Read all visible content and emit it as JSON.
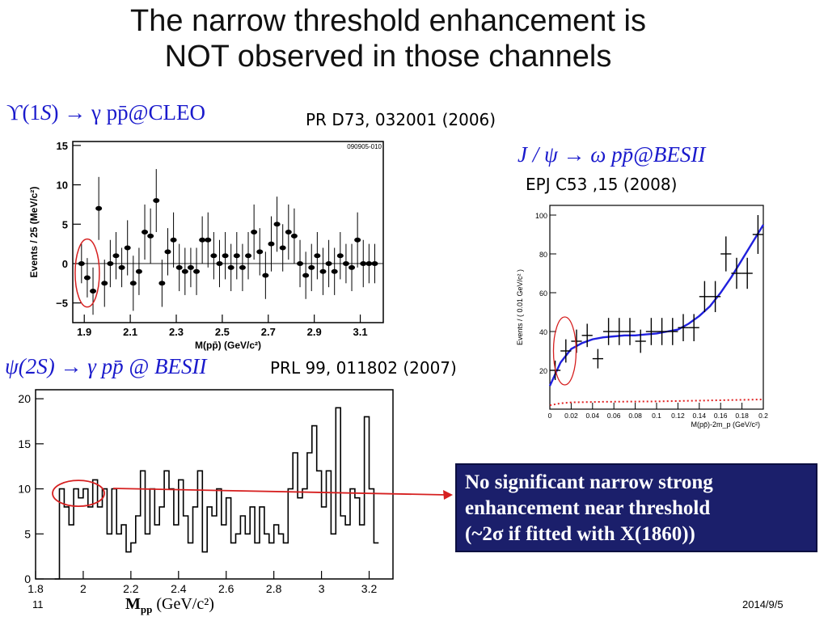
{
  "title_line1": "The narrow threshold enhancement is",
  "title_line2": "NOT observed in those channels",
  "cleo": {
    "reaction_prefix": "ϒ(1",
    "reaction_S": "S",
    "reaction_suffix": ") → γ pp̄@CLEO",
    "reference": "PR D73, 032001 (2006)",
    "stamp": "090905-010"
  },
  "besii_omega": {
    "reaction": "J / ψ → ω pp̄@BESII",
    "reference": "EPJ C53 ,15 (2008)"
  },
  "besii_psi2s": {
    "reaction": "ψ(2S) → γ pp̄ @ BESII",
    "reference": "PRL 99, 011802 (2007)"
  },
  "conclusion": {
    "line1": "No significant narrow strong",
    "line2": "enhancement  near threshold",
    "line3": "(~2σ if fitted with X(1860))"
  },
  "footer": {
    "page": "11",
    "date": "2014/9/5"
  },
  "bottom_xlabel": {
    "main": "M",
    "sub": "pp",
    "units": " (GeV/c²)"
  },
  "colors": {
    "title_text": "#111111",
    "reaction_text": "#1a1acc",
    "conclusion_bg": "#1b1f6b",
    "circle": "#d62020",
    "fit_line": "#2020dd",
    "arrow": "#d62020"
  },
  "chart_data": [
    {
      "id": "cleo",
      "type": "scatter",
      "title": "",
      "xlabel": "M(pp̄) (GeV/c²)",
      "ylabel": "Events / 25 (MeV/c²)",
      "xlim": [
        1.85,
        3.2
      ],
      "ylim": [
        -7.5,
        15.5
      ],
      "xticks": [
        1.9,
        2.1,
        2.3,
        2.5,
        2.7,
        2.9,
        3.1
      ],
      "yticks": [
        -5,
        0,
        5,
        10,
        15
      ],
      "x": [
        1.888,
        1.913,
        1.938,
        1.963,
        1.988,
        2.013,
        2.038,
        2.063,
        2.088,
        2.113,
        2.138,
        2.163,
        2.188,
        2.213,
        2.238,
        2.263,
        2.288,
        2.313,
        2.338,
        2.363,
        2.388,
        2.413,
        2.438,
        2.463,
        2.488,
        2.513,
        2.538,
        2.563,
        2.588,
        2.613,
        2.638,
        2.663,
        2.688,
        2.713,
        2.738,
        2.763,
        2.788,
        2.813,
        2.838,
        2.863,
        2.888,
        2.913,
        2.938,
        2.963,
        2.988,
        3.013,
        3.038,
        3.063,
        3.088,
        3.113,
        3.138,
        3.163
      ],
      "values": [
        0,
        -1.8,
        -3.5,
        7,
        -2.5,
        0,
        1,
        -0.5,
        2,
        -2.5,
        -1,
        4,
        3.5,
        8,
        -2.5,
        1.5,
        3,
        -0.5,
        -1,
        -0.5,
        -1,
        3,
        3,
        1,
        0,
        1,
        -0.5,
        1,
        -0.5,
        1,
        4,
        1.5,
        -1.5,
        2.5,
        5,
        2,
        4,
        3.5,
        0,
        -1.5,
        -0.5,
        1,
        -1,
        0,
        -1,
        1,
        0,
        -0.5,
        3,
        0,
        0,
        0
      ],
      "errors": [
        2.5,
        2.5,
        3,
        4,
        3,
        3,
        3,
        2.5,
        3.5,
        3.5,
        3,
        3.5,
        3.5,
        4,
        3,
        3,
        3.5,
        3,
        3,
        2.5,
        3,
        3,
        3.5,
        3,
        3,
        3,
        3,
        3,
        3,
        3,
        3.5,
        3,
        3,
        3.5,
        3.5,
        3,
        3.5,
        3.5,
        3,
        3,
        3,
        3,
        3,
        3,
        3,
        3,
        2.5,
        3,
        3.5,
        3,
        2.5,
        2.5
      ],
      "grid": false
    },
    {
      "id": "besii_omega",
      "type": "scatter",
      "title": "",
      "xlabel": "M(pp̄)-2m_p (GeV/c²)",
      "ylabel": "Events / ( 0.01 GeV/c² )",
      "xlim": [
        0,
        0.2
      ],
      "ylim": [
        0,
        105
      ],
      "xticks": [
        0,
        0.02,
        0.04,
        0.06,
        0.08,
        0.1,
        0.12,
        0.14,
        0.16,
        0.18,
        0.2
      ],
      "yticks": [
        20,
        40,
        60,
        80,
        100
      ],
      "x": [
        0.005,
        0.015,
        0.025,
        0.035,
        0.045,
        0.055,
        0.065,
        0.075,
        0.085,
        0.095,
        0.105,
        0.115,
        0.125,
        0.135,
        0.145,
        0.155,
        0.165,
        0.175,
        0.185,
        0.195
      ],
      "values": [
        20,
        30,
        35,
        38,
        26,
        40,
        40,
        40,
        35,
        40,
        40,
        40,
        42,
        42,
        58,
        58,
        80,
        70,
        70,
        90
      ],
      "errors": [
        5,
        6,
        6,
        6,
        5,
        7,
        7,
        7,
        6,
        7,
        7,
        7,
        7,
        7,
        8,
        8,
        9,
        8,
        8,
        10
      ],
      "fit_curve": {
        "x": [
          0,
          0.01,
          0.02,
          0.03,
          0.04,
          0.05,
          0.06,
          0.07,
          0.08,
          0.09,
          0.1,
          0.11,
          0.12,
          0.13,
          0.14,
          0.15,
          0.16,
          0.17,
          0.18,
          0.19,
          0.2
        ],
        "y": [
          12,
          24,
          31,
          34,
          36,
          37,
          37.5,
          38,
          38,
          38.5,
          39,
          40,
          41,
          44,
          48,
          53,
          60,
          68,
          77,
          86,
          95
        ]
      },
      "background_curve": {
        "x": [
          0,
          0.01,
          0.02,
          0.05,
          0.1,
          0.15,
          0.2
        ],
        "y": [
          2,
          3,
          3.5,
          3.8,
          4,
          4.5,
          5
        ]
      },
      "grid": false
    },
    {
      "id": "besii_psi2s",
      "type": "line",
      "title": "",
      "xlabel": "Mpp (GeV/c²)",
      "ylabel": "",
      "xlim": [
        1.8,
        3.3
      ],
      "ylim": [
        0,
        21
      ],
      "xticks": [
        1.8,
        2,
        2.2,
        2.4,
        2.6,
        2.8,
        3,
        3.2
      ],
      "xtick_labels": [
        "1.8",
        "2",
        "2.2",
        "2.4",
        "2.6",
        "2.8",
        "3",
        "3.2"
      ],
      "yticks": [
        0,
        5,
        10,
        15,
        20
      ],
      "bin_width": 0.02,
      "bin_start": 1.88,
      "values": [
        0,
        10,
        8,
        6,
        10,
        9,
        10,
        8,
        11,
        8,
        10,
        5,
        10,
        5,
        6,
        3,
        4,
        7,
        12,
        5,
        10,
        6,
        8,
        12,
        10,
        6,
        11,
        7,
        4,
        8,
        12,
        3,
        8,
        7,
        10,
        6,
        9,
        4,
        5,
        7,
        5,
        8,
        4,
        8,
        5,
        4,
        6,
        5,
        4,
        10,
        14,
        9,
        10,
        14,
        17,
        12,
        8,
        12,
        5,
        19,
        7,
        6,
        10,
        9,
        6,
        18,
        10,
        4
      ]
    }
  ]
}
